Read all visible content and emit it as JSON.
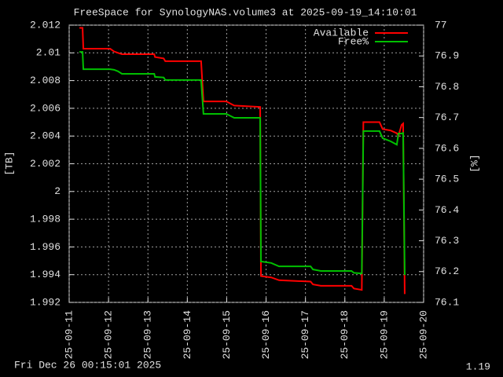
{
  "chart_data": {
    "type": "line",
    "title": "FreeSpace for SynologyNAS.volume3  at 2025-09-19_14:10:01",
    "y_label": "[TB]",
    "y2_label": "[%]",
    "footer_left": "Fri Dec 26 00:15:01 2025",
    "footer_right": "1.19",
    "x": [
      11.26,
      11.34,
      11.36,
      12.04,
      12.14,
      12.24,
      12.34,
      13.16,
      13.18,
      13.4,
      13.44,
      14.35,
      14.41,
      14.99,
      15.19,
      15.85,
      15.87,
      16.13,
      16.33,
      17.13,
      17.19,
      17.39,
      18.17,
      18.23,
      18.43,
      18.47,
      18.88,
      18.96,
      19.16,
      19.32,
      19.36,
      19.44,
      19.48,
      19.52
    ],
    "series": [
      {
        "name": "Available",
        "color": "#ff0000",
        "axis": "y",
        "values": [
          2.0118,
          2.0118,
          2.0103,
          2.0103,
          2.0101,
          2.01,
          2.0099,
          2.0099,
          2.0097,
          2.0096,
          2.0094,
          2.0094,
          2.0065,
          2.0065,
          2.0062,
          2.0061,
          1.9939,
          1.9938,
          1.9936,
          1.9935,
          1.9933,
          1.9932,
          1.9932,
          1.993,
          1.9929,
          2.005,
          2.005,
          2.0045,
          2.0044,
          2.0042,
          2.004,
          2.0048,
          2.0049,
          1.9926
        ]
      },
      {
        "name": "Free%",
        "color": "#00c000",
        "axis": "y2",
        "values": [
          76.913,
          76.913,
          76.857,
          76.857,
          76.855,
          76.85,
          76.842,
          76.842,
          76.832,
          76.83,
          76.822,
          76.822,
          76.712,
          76.712,
          76.699,
          76.699,
          76.233,
          76.228,
          76.217,
          76.217,
          76.207,
          76.202,
          76.202,
          76.196,
          76.194,
          76.656,
          76.656,
          76.633,
          76.623,
          76.612,
          76.648,
          76.648,
          76.65,
          76.189
        ]
      }
    ],
    "xlim": [
      11,
      20
    ],
    "xticks": [
      {
        "value": 11,
        "label": "25-09-11"
      },
      {
        "value": 12,
        "label": "25-09-12"
      },
      {
        "value": 13,
        "label": "25-09-13"
      },
      {
        "value": 14,
        "label": "25-09-14"
      },
      {
        "value": 15,
        "label": "25-09-15"
      },
      {
        "value": 16,
        "label": "25-09-16"
      },
      {
        "value": 17,
        "label": "25-09-17"
      },
      {
        "value": 18,
        "label": "25-09-18"
      },
      {
        "value": 19,
        "label": "25-09-19"
      },
      {
        "value": 20,
        "label": "25-09-20"
      }
    ],
    "ylim": [
      1.992,
      2.012
    ],
    "yticks": [
      1.992,
      1.994,
      1.996,
      1.998,
      2,
      2.002,
      2.004,
      2.006,
      2.008,
      2.01,
      2.012
    ],
    "y2lim": [
      76.1,
      77
    ],
    "y2ticks": [
      76.1,
      76.2,
      76.3,
      76.4,
      76.5,
      76.6,
      76.7,
      76.8,
      76.9,
      77
    ],
    "grid": true,
    "legend": "top-right"
  }
}
